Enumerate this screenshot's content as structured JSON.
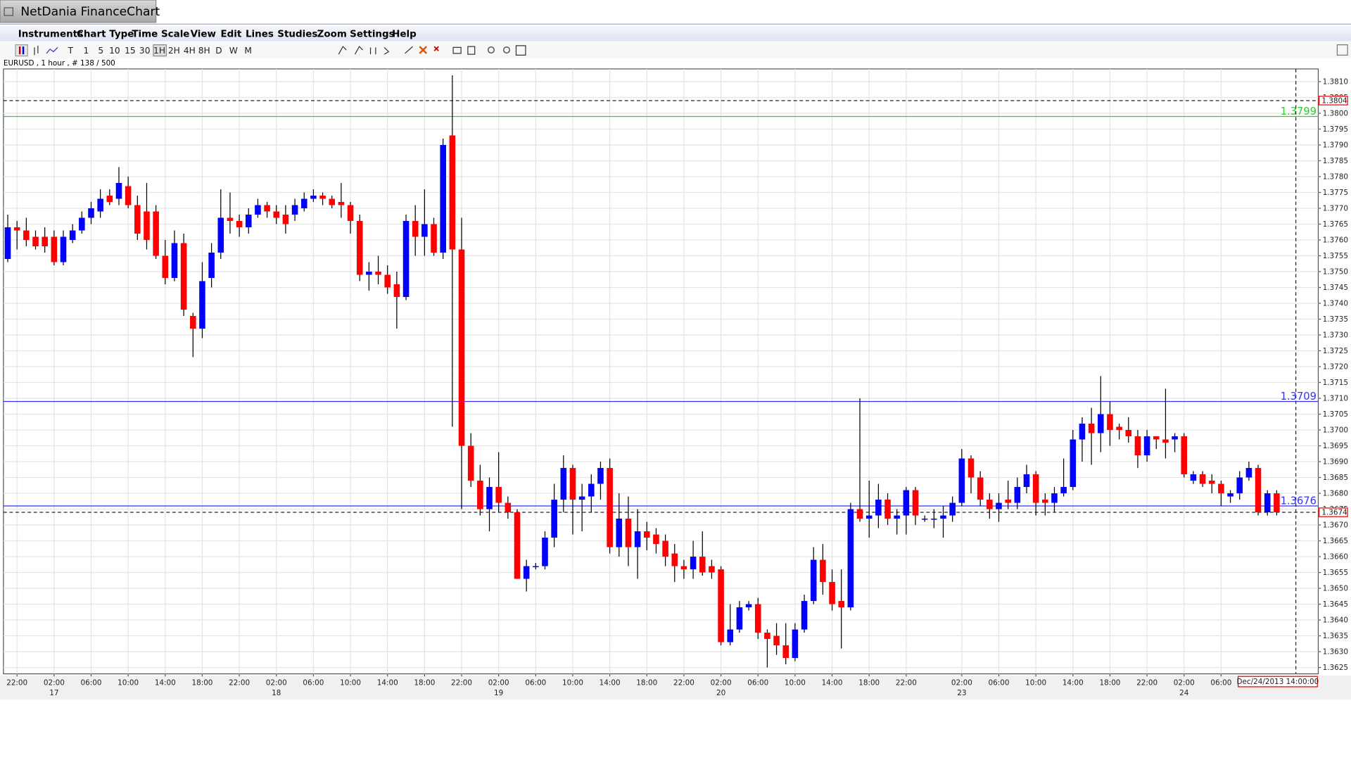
{
  "window": {
    "title": "NetDania FinanceChart"
  },
  "menu": [
    "Instruments",
    "Chart Type",
    "Time Scale",
    "View",
    "Edit",
    "Lines",
    "Studies",
    "Zoom",
    "Settings",
    "Help"
  ],
  "toolbar": [
    "T",
    "1",
    "5",
    "10",
    "15",
    "30",
    "1H",
    "2H",
    "4H",
    "8H",
    "D",
    "W",
    "M"
  ],
  "chart_data": {
    "type": "candlestick",
    "info": "EURUSD , 1 hour , # 138 / 500",
    "categories": [
      null,
      "22:00",
      null,
      null,
      null,
      "02:00",
      null,
      null,
      null,
      "06:00",
      null,
      null,
      null,
      "10:00",
      null,
      null,
      null,
      "14:00",
      null,
      null,
      null,
      "18:00",
      null,
      null,
      null,
      "22:00",
      null,
      null,
      null,
      "02:00",
      null,
      null,
      null,
      "06:00",
      null,
      null,
      null,
      "10:00",
      null,
      null,
      null,
      "14:00",
      null,
      null,
      null,
      "18:00",
      null,
      null,
      null,
      "22:00",
      null,
      null,
      null,
      "02:00",
      null,
      null,
      null,
      "06:00",
      null,
      null,
      null,
      "10:00",
      null,
      null,
      null,
      "14:00",
      null,
      null,
      null,
      "18:00",
      null,
      null,
      null,
      "22:00",
      null,
      null,
      null,
      "02:00",
      null,
      null,
      null,
      "06:00",
      null,
      null,
      null,
      "10:00",
      null,
      null,
      null,
      "14:00",
      null,
      null,
      null,
      "18:00",
      null,
      null,
      null,
      "22:00",
      null,
      null,
      null,
      null,
      null,
      "02:00",
      null,
      null,
      null,
      "06:00",
      null,
      null,
      null,
      "10:00",
      null,
      null,
      null,
      "14:00",
      null,
      null,
      null,
      "18:00",
      null,
      null,
      null,
      "22:00",
      null,
      null,
      null,
      "02:00",
      null,
      null,
      null,
      "06:00",
      null,
      null,
      null,
      null,
      null,
      null
    ],
    "category_dates": [
      null,
      null,
      null,
      null,
      null,
      "17",
      null,
      null,
      null,
      null,
      null,
      null,
      null,
      null,
      null,
      null,
      null,
      null,
      null,
      null,
      null,
      null,
      null,
      null,
      null,
      null,
      null,
      null,
      null,
      "18",
      null,
      null,
      null,
      null,
      null,
      null,
      null,
      null,
      null,
      null,
      null,
      null,
      null,
      null,
      null,
      null,
      null,
      null,
      null,
      null,
      null,
      null,
      null,
      "19",
      null,
      null,
      null,
      null,
      null,
      null,
      null,
      null,
      null,
      null,
      null,
      null,
      null,
      null,
      null,
      null,
      null,
      null,
      null,
      null,
      null,
      null,
      null,
      "20",
      null,
      null,
      null,
      null,
      null,
      null,
      null,
      null,
      null,
      null,
      null,
      null,
      null,
      null,
      null,
      null,
      null,
      null,
      null,
      null,
      null,
      null,
      null,
      null,
      null,
      "23",
      null,
      null,
      null,
      null,
      null,
      null,
      null,
      null,
      null,
      null,
      null,
      null,
      null,
      null,
      null,
      null,
      null,
      null,
      null,
      null,
      null,
      null,
      null,
      "24",
      null,
      null,
      null,
      null,
      null,
      null,
      null,
      null,
      null,
      null
    ],
    "open": [
      1.3754,
      1.3764,
      1.3763,
      1.3761,
      1.3761,
      1.3761,
      1.3753,
      1.376,
      1.3763,
      1.3767,
      1.3769,
      1.3774,
      1.3773,
      1.3777,
      1.3771,
      1.3769,
      1.3769,
      1.3755,
      1.3748,
      1.3759,
      1.3736,
      1.3732,
      1.3748,
      1.3756,
      1.3767,
      1.3766,
      1.3764,
      1.3768,
      1.3771,
      1.3769,
      1.3768,
      1.3768,
      1.377,
      1.3773,
      1.3774,
      1.3773,
      1.3772,
      1.3771,
      1.3766,
      1.3749,
      1.375,
      1.3749,
      1.3746,
      1.3742,
      1.3766,
      1.3761,
      1.3765,
      1.3756,
      1.3793,
      1.3757,
      1.3695,
      1.3684,
      1.3675,
      1.3682,
      1.3677,
      1.3674,
      1.3653,
      1.3657,
      1.3657,
      1.3666,
      1.3678,
      1.3688,
      1.3678,
      1.3679,
      1.3683,
      1.3688,
      1.3663,
      1.3672,
      1.3663,
      1.3668,
      1.3667,
      1.3665,
      1.3661,
      1.3657,
      1.3656,
      1.366,
      1.3657,
      1.3656,
      1.3633,
      1.3637,
      1.3644,
      1.3645,
      1.3636,
      1.3635,
      1.3632,
      1.3628,
      1.3637,
      1.3646,
      1.3659,
      1.3652,
      1.3646,
      1.3644,
      1.3675,
      1.3672,
      1.3673,
      1.3678,
      1.3672,
      1.3673,
      1.3681,
      1.3672,
      1.3672,
      1.3672,
      1.3673,
      1.3677,
      1.3691,
      1.3685,
      1.3678,
      1.3675,
      1.3678,
      1.3677,
      1.3682,
      1.3686,
      1.3678,
      1.3677,
      1.368,
      1.3682,
      1.3697,
      1.3702,
      1.3699,
      1.3705,
      1.3701,
      1.37,
      1.3698,
      1.3692,
      1.3698,
      1.3697,
      1.3697,
      1.3698,
      1.3684,
      1.3686,
      1.3684,
      1.3683,
      1.3679,
      1.368,
      1.3685,
      1.3688,
      1.3674,
      1.368
    ],
    "high": [
      1.3768,
      1.3766,
      1.3767,
      1.3763,
      1.3764,
      1.3763,
      1.3763,
      1.3765,
      1.3769,
      1.3772,
      1.3776,
      1.3776,
      1.3783,
      1.378,
      1.3774,
      1.3778,
      1.3771,
      1.376,
      1.3763,
      1.3762,
      1.3737,
      1.3753,
      1.3759,
      1.3776,
      1.3775,
      1.3768,
      1.377,
      1.3773,
      1.3772,
      1.3771,
      1.3771,
      1.3773,
      1.3775,
      1.3776,
      1.3775,
      1.3774,
      1.3778,
      1.3772,
      1.3768,
      1.3753,
      1.3755,
      1.3752,
      1.375,
      1.3768,
      1.3771,
      1.3776,
      1.3767,
      1.3792,
      1.3812,
      1.3767,
      1.3699,
      1.3689,
      1.3685,
      1.3693,
      1.3679,
      1.3675,
      1.3659,
      1.3658,
      1.3668,
      1.3683,
      1.3692,
      1.3689,
      1.3683,
      1.3686,
      1.369,
      1.3691,
      1.368,
      1.3679,
      1.3675,
      1.3671,
      1.3669,
      1.3667,
      1.3664,
      1.3659,
      1.3665,
      1.3668,
      1.3659,
      1.3657,
      1.3645,
      1.3646,
      1.3646,
      1.3647,
      1.3637,
      1.3639,
      1.3639,
      1.3639,
      1.3648,
      1.3663,
      1.3664,
      1.3656,
      1.3656,
      1.3677,
      1.371,
      1.3684,
      1.3683,
      1.368,
      1.3675,
      1.3682,
      1.3682,
      1.3673,
      1.3675,
      1.3676,
      1.3679,
      1.3694,
      1.3692,
      1.3687,
      1.368,
      1.368,
      1.3684,
      1.3685,
      1.3689,
      1.3687,
      1.368,
      1.3682,
      1.3691,
      1.37,
      1.3704,
      1.3707,
      1.3717,
      1.3709,
      1.3702,
      1.3704,
      1.37,
      1.37,
      1.3698,
      1.3713,
      1.3699,
      1.3699,
      1.3687,
      1.3687,
      1.3686,
      1.3684,
      1.3681,
      1.3687,
      1.369,
      1.3689,
      1.3681,
      1.3681
    ],
    "low": [
      1.3753,
      1.3757,
      1.3758,
      1.3757,
      1.3756,
      1.3752,
      1.3752,
      1.3759,
      1.3762,
      1.3765,
      1.3767,
      1.3771,
      1.3771,
      1.377,
      1.376,
      1.3757,
      1.3754,
      1.3746,
      1.3747,
      1.3736,
      1.3723,
      1.3729,
      1.3745,
      1.3754,
      1.3762,
      1.3761,
      1.3762,
      1.3767,
      1.3767,
      1.3765,
      1.3762,
      1.3766,
      1.3769,
      1.3772,
      1.3771,
      1.377,
      1.3767,
      1.3762,
      1.3747,
      1.3744,
      1.3746,
      1.3743,
      1.3732,
      1.3741,
      1.3755,
      1.3755,
      1.3755,
      1.3754,
      1.3701,
      1.3675,
      1.3682,
      1.3673,
      1.3668,
      1.3674,
      1.3672,
      1.3653,
      1.3649,
      1.3656,
      1.3656,
      1.3663,
      1.3674,
      1.3667,
      1.3668,
      1.3674,
      1.3678,
      1.3661,
      1.366,
      1.3657,
      1.3653,
      1.3662,
      1.3661,
      1.3657,
      1.3652,
      1.3653,
      1.3653,
      1.3654,
      1.3653,
      1.3632,
      1.3632,
      1.3636,
      1.3643,
      1.3634,
      1.3625,
      1.3629,
      1.3626,
      1.3627,
      1.3636,
      1.3645,
      1.3648,
      1.3643,
      1.3631,
      1.3643,
      1.3671,
      1.3666,
      1.3669,
      1.367,
      1.3667,
      1.3667,
      1.367,
      1.3671,
      1.3669,
      1.3666,
      1.3671,
      1.3676,
      1.368,
      1.3676,
      1.3672,
      1.3671,
      1.3675,
      1.3675,
      1.368,
      1.3673,
      1.3673,
      1.3674,
      1.3679,
      1.3681,
      1.369,
      1.3689,
      1.3693,
      1.3695,
      1.3697,
      1.3696,
      1.3688,
      1.369,
      1.3694,
      1.3691,
      1.3693,
      1.3685,
      1.3683,
      1.3682,
      1.368,
      1.3676,
      1.3677,
      1.3678,
      1.3684,
      1.3673,
      1.3673,
      1.3673
    ],
    "close": [
      1.3764,
      1.3763,
      1.376,
      1.3758,
      1.3758,
      1.3753,
      1.3761,
      1.3763,
      1.3767,
      1.377,
      1.3773,
      1.3772,
      1.3778,
      1.3771,
      1.3762,
      1.376,
      1.3755,
      1.3748,
      1.3759,
      1.3738,
      1.3732,
      1.3747,
      1.3756,
      1.3767,
      1.3766,
      1.3764,
      1.3768,
      1.3771,
      1.3769,
      1.3767,
      1.3765,
      1.3771,
      1.3773,
      1.3774,
      1.3773,
      1.3771,
      1.3771,
      1.3766,
      1.3749,
      1.375,
      1.3749,
      1.3745,
      1.3742,
      1.3766,
      1.3761,
      1.3765,
      1.3756,
      1.379,
      1.3757,
      1.3695,
      1.3684,
      1.3675,
      1.3682,
      1.3677,
      1.3674,
      1.3653,
      1.3657,
      1.3657,
      1.3666,
      1.3678,
      1.3688,
      1.3678,
      1.3679,
      1.3683,
      1.3688,
      1.3663,
      1.3672,
      1.3663,
      1.3668,
      1.3666,
      1.3664,
      1.366,
      1.3657,
      1.3656,
      1.366,
      1.3655,
      1.3655,
      1.3633,
      1.3637,
      1.3644,
      1.3645,
      1.3636,
      1.3634,
      1.3632,
      1.3628,
      1.3637,
      1.3646,
      1.3659,
      1.3652,
      1.3645,
      1.3644,
      1.3675,
      1.3672,
      1.3673,
      1.3678,
      1.3672,
      1.3673,
      1.3681,
      1.3673,
      1.3672,
      1.3672,
      1.3673,
      1.3677,
      1.3691,
      1.3685,
      1.3678,
      1.3675,
      1.3677,
      1.3677,
      1.3682,
      1.3686,
      1.3677,
      1.3677,
      1.368,
      1.3682,
      1.3697,
      1.3702,
      1.3699,
      1.3705,
      1.37,
      1.37,
      1.3698,
      1.3692,
      1.3698,
      1.3697,
      1.3696,
      1.3698,
      1.3686,
      1.3686,
      1.3683,
      1.3683,
      1.368,
      1.368,
      1.3685,
      1.3688,
      1.3674,
      1.368,
      1.3674
    ],
    "up_color": "#0000ff",
    "down_color": "#ff0000",
    "ylim": [
      1.3623,
      1.3814
    ],
    "yticks": [
      1.3625,
      {
        "value": 1.363,
        "label": "1.3630"
      },
      1.3635,
      {
        "value": 1.364,
        "label": "1.3640"
      },
      1.3645,
      {
        "value": 1.365,
        "label": "1.3650"
      },
      1.3655,
      {
        "value": 1.366,
        "label": "1.3660"
      },
      1.3665,
      {
        "value": 1.367,
        "label": "1.3670"
      },
      1.3675,
      {
        "value": 1.368,
        "label": "1.3680"
      },
      1.3685,
      {
        "value": 1.369,
        "label": "1.3690"
      },
      1.3695,
      {
        "value": 1.37,
        "label": "1.3700"
      },
      1.3705,
      {
        "value": 1.371,
        "label": "1.3710"
      },
      1.3715,
      {
        "value": 1.372,
        "label": "1.3720"
      },
      1.3725,
      {
        "value": 1.373,
        "label": "1.3730"
      },
      1.3735,
      {
        "value": 1.374,
        "label": "1.3740"
      },
      1.3745,
      {
        "value": 1.375,
        "label": "1.3750"
      },
      1.3755,
      {
        "value": 1.376,
        "label": "1.3760"
      },
      1.3765,
      {
        "value": 1.377,
        "label": "1.3770"
      },
      1.3775,
      {
        "value": 1.378,
        "label": "1.3780"
      },
      1.3785,
      {
        "value": 1.379,
        "label": "1.3790"
      },
      1.3795,
      {
        "value": 1.38,
        "label": "1.3800"
      },
      1.3805,
      {
        "value": 1.381,
        "label": "1.3810"
      }
    ],
    "grid": true,
    "hlines": [
      {
        "value": 1.3799,
        "color": "#33cc33"
      },
      {
        "value": 1.3709,
        "color": "#3333ff"
      },
      {
        "value": 1.3676,
        "color": "#3333ff"
      }
    ],
    "price_markers": [
      1.3804,
      1.3674
    ],
    "crosshair_label": "Dec/24/2013 14:00:00"
  }
}
